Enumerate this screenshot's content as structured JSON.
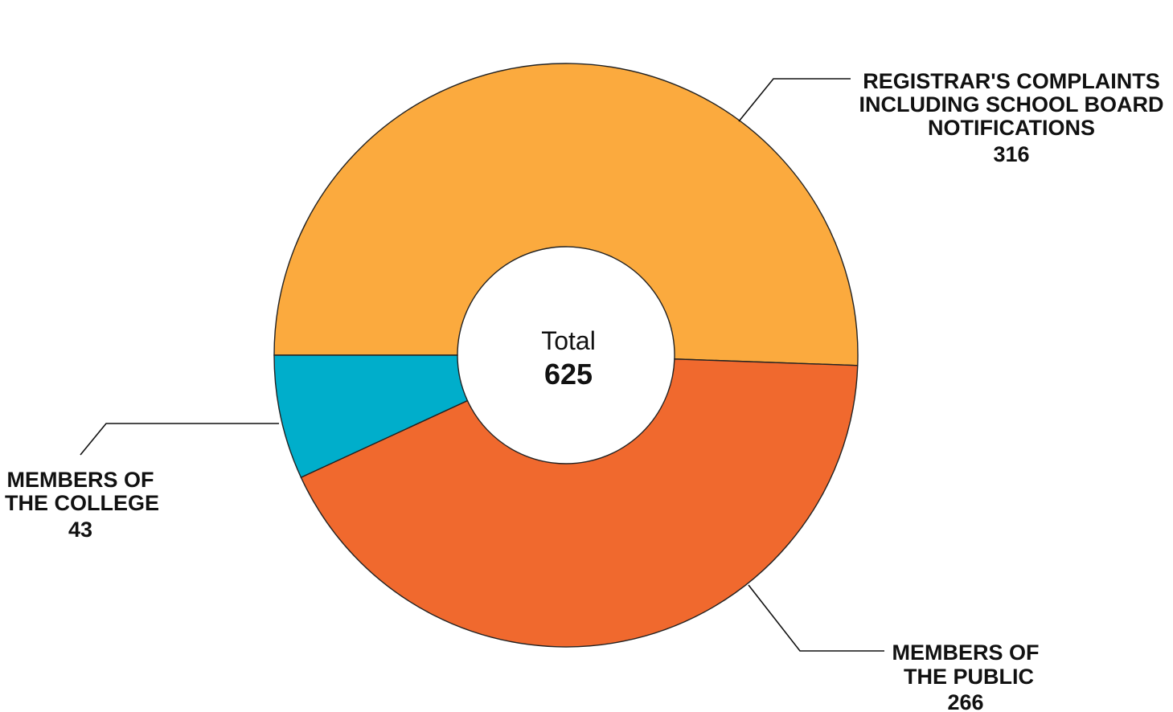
{
  "chart_data": {
    "type": "pie",
    "variant": "donut",
    "center": {
      "label": "Total",
      "value": "625"
    },
    "slices": [
      {
        "label_lines": [
          "REGISTRAR'S COMPLAINTS",
          "INCLUDING SCHOOL BOARD",
          "NOTIFICATIONS"
        ],
        "value": 316,
        "color": "#FBAA3E"
      },
      {
        "label_lines": [
          "MEMBERS OF",
          "THE PUBLIC"
        ],
        "value": 266,
        "color": "#F0692E"
      },
      {
        "label_lines": [
          "MEMBERS OF",
          "THE COLLEGE"
        ],
        "value": 43,
        "color": "#00AECB"
      }
    ],
    "legend": "none (callout labels)"
  }
}
